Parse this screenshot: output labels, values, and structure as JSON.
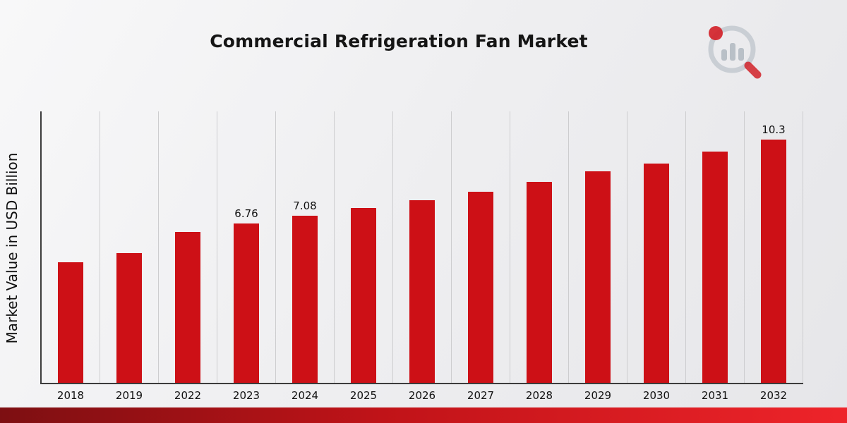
{
  "page": {
    "title": "Commercial Refrigeration Fan Market",
    "ylabel": "Market Value in USD Billion"
  },
  "chart_data": {
    "type": "bar",
    "title": "Commercial Refrigeration Fan Market",
    "xlabel": "",
    "ylabel": "Market Value in USD Billion",
    "categories": [
      "2018",
      "2019",
      "2022",
      "2023",
      "2024",
      "2025",
      "2026",
      "2027",
      "2028",
      "2029",
      "2030",
      "2031",
      "2032"
    ],
    "values": [
      5.1,
      5.5,
      6.4,
      6.76,
      7.08,
      7.4,
      7.75,
      8.1,
      8.5,
      8.95,
      9.3,
      9.8,
      10.3
    ],
    "data_labels": [
      "",
      "",
      "",
      "6.76",
      "7.08",
      "",
      "",
      "",
      "",
      "",
      "",
      "",
      "10.3"
    ],
    "ylim": [
      0,
      11.5
    ],
    "bar_color": "#cd1016",
    "grid": "vertical-only",
    "legend": "none"
  },
  "branding": {
    "logo_icon": "bar-chart-magnifier-logo",
    "logo_accent_color": "#d2232a",
    "logo_gray_color": "#c3c9cf"
  },
  "footer": {
    "band_color_left": "#7d0f12",
    "band_color_right": "#ee242a"
  }
}
